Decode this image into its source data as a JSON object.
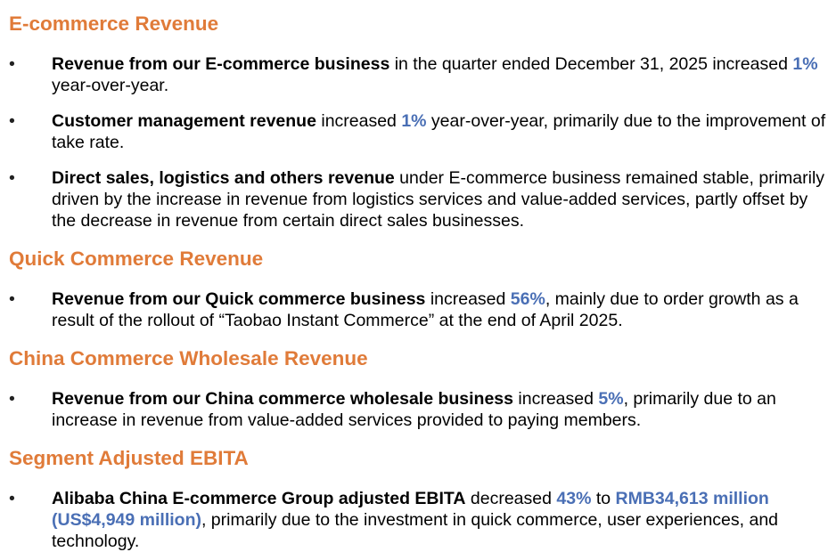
{
  "sections": [
    {
      "heading": "E-commerce Revenue",
      "bullets": [
        {
          "runs": [
            {
              "text": "Revenue from our E-commerce business",
              "style": "bold"
            },
            {
              "text": " in the quarter ended December 31, 2025 increased ",
              "style": "normal"
            },
            {
              "text": "1%",
              "style": "highlight"
            },
            {
              "text": " year-over-year.",
              "style": "normal"
            }
          ]
        },
        {
          "runs": [
            {
              "text": "Customer management revenue",
              "style": "bold"
            },
            {
              "text": " increased ",
              "style": "normal"
            },
            {
              "text": "1%",
              "style": "highlight"
            },
            {
              "text": " year-over-year, primarily due to the improvement of take rate.",
              "style": "normal"
            }
          ]
        },
        {
          "runs": [
            {
              "text": "Direct sales, logistics and others revenue",
              "style": "bold"
            },
            {
              "text": " under E-commerce business remained stable, primarily driven by the increase in revenue from logistics services and value-added services, partly offset by the decrease in revenue from certain direct sales businesses.",
              "style": "normal"
            }
          ]
        }
      ]
    },
    {
      "heading": "Quick Commerce Revenue",
      "bullets": [
        {
          "runs": [
            {
              "text": "Revenue from our Quick commerce business",
              "style": "bold"
            },
            {
              "text": " increased ",
              "style": "normal"
            },
            {
              "text": "56%",
              "style": "highlight"
            },
            {
              "text": ", mainly due to order growth as a result of the rollout of “Taobao Instant Commerce” at the end of April 2025.",
              "style": "normal"
            }
          ]
        }
      ]
    },
    {
      "heading": "China Commerce Wholesale Revenue",
      "bullets": [
        {
          "runs": [
            {
              "text": "Revenue from our China commerce wholesale business",
              "style": "bold"
            },
            {
              "text": " increased ",
              "style": "normal"
            },
            {
              "text": "5%",
              "style": "highlight"
            },
            {
              "text": ", primarily due to an increase in revenue from value-added services provided to paying members.",
              "style": "normal"
            }
          ]
        }
      ]
    },
    {
      "heading": "Segment Adjusted EBITA",
      "bullets": [
        {
          "runs": [
            {
              "text": "Alibaba China E-commerce Group adjusted EBITA",
              "style": "bold"
            },
            {
              "text": " decreased ",
              "style": "normal"
            },
            {
              "text": "43%",
              "style": "highlight"
            },
            {
              "text": " to ",
              "style": "normal"
            },
            {
              "text": "RMB34,613 million (US$4,949 million)",
              "style": "highlight"
            },
            {
              "text": ", primarily due to the investment in quick commerce, user experiences, and technology.",
              "style": "normal"
            }
          ]
        }
      ]
    }
  ],
  "colors": {
    "heading": "#E07B39",
    "highlight": "#4A6FB5",
    "text": "#000000"
  },
  "bullet_glyph": "•"
}
